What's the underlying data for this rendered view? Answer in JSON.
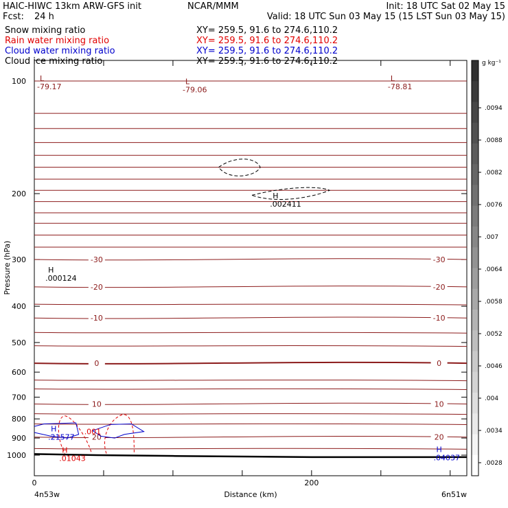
{
  "header": {
    "line1_left": "HAIC-HIWC 13km ARW-GFS init",
    "line1_mid": "NCAR/MMM",
    "line1_right": "Init: 18 UTC Sat 02 May 15",
    "line2_left": "Fcst:",
    "line2_left_val": "24 h",
    "line2_right": "Valid: 18 UTC Sun 03 May 15 (15 LST Sun 03 May 15)",
    "fields": [
      {
        "name": "Snow mixing ratio",
        "xy": "XY= 259.5, 91.6 to 274.6,110.2",
        "color": "#000000"
      },
      {
        "name": "Rain water mixing ratio",
        "xy": "XY= 259.5, 91.6 to 274.6,110.2",
        "color": "#e00000"
      },
      {
        "name": "Cloud water mixing ratio",
        "xy": "XY= 259.5, 91.6 to 274.6,110.2",
        "color": "#0000cc"
      },
      {
        "name": "Cloud ice mixing ratio",
        "xy": "XY= 259.5, 91.6 to 274.6,110.2",
        "color": "#000000"
      }
    ]
  },
  "chart_data": {
    "type": "line",
    "xlabel": "Distance (km)",
    "ylabel": "Pressure (hPa)",
    "xlim": [
      0,
      312
    ],
    "ylim": [
      1050,
      50
    ],
    "y_scale": "log",
    "x_ticks": [
      0,
      50,
      100,
      150,
      200,
      250,
      300
    ],
    "x_tick_labels": [
      "0",
      "",
      "",
      "",
      "200",
      "",
      ""
    ],
    "y_ticks": [
      100,
      200,
      300,
      400,
      500,
      600,
      700,
      800,
      900,
      1000
    ],
    "x_endpoint_labels": {
      "left": "4n53w",
      "right": "6n51w"
    },
    "temperature_contours": [
      {
        "label": "-30",
        "pressure": 300,
        "color": "#8b1a1a"
      },
      {
        "label": "-20",
        "pressure": 355,
        "color": "#8b1a1a"
      },
      {
        "label": "-10",
        "pressure": 430,
        "color": "#8b1a1a"
      },
      {
        "label": "0",
        "pressure": 568,
        "color": "#8b1a1a",
        "bold": true
      },
      {
        "label": "10",
        "pressure": 730,
        "color": "#8b1a1a"
      },
      {
        "label": "20",
        "pressure": 895,
        "color": "#8b1a1a"
      }
    ],
    "max_min_labels": [
      {
        "letter": "L",
        "value": "-79.17",
        "x": 0,
        "p": 100,
        "color": "#8b1a1a"
      },
      {
        "letter": "L",
        "value": "-79.06",
        "x": 105,
        "p": 102,
        "color": "#8b1a1a"
      },
      {
        "letter": "L",
        "value": "-78.81",
        "x": 253,
        "p": 100,
        "color": "#8b1a1a"
      },
      {
        "letter": "H",
        "value": ".002411",
        "x": 168,
        "p": 206,
        "color": "#000000"
      },
      {
        "letter": "H",
        "value": ".000124",
        "x": 6,
        "p": 325,
        "color": "#000000"
      },
      {
        "letter": "H",
        "value": ".21577",
        "x": 8,
        "p": 865,
        "color": "#0000cc"
      },
      {
        "letter": "H",
        "value": ".01043",
        "x": 16,
        "p": 985,
        "color": "#e00000"
      },
      {
        "letter": "H",
        "value": ".04037",
        "x": 286,
        "p": 982,
        "color": "#0000cc"
      }
    ],
    "contour_labels": [
      {
        "value": ".001",
        "x": 36,
        "p": 880,
        "color": "#e00000"
      }
    ],
    "colorbar": {
      "unit": "g kg⁻¹",
      "labels": [
        ".0094",
        ".0088",
        ".0082",
        ".0076",
        ".007",
        ".0064",
        ".0058",
        ".0052",
        ".0046",
        ".004",
        ".0034",
        ".0028"
      ]
    }
  }
}
